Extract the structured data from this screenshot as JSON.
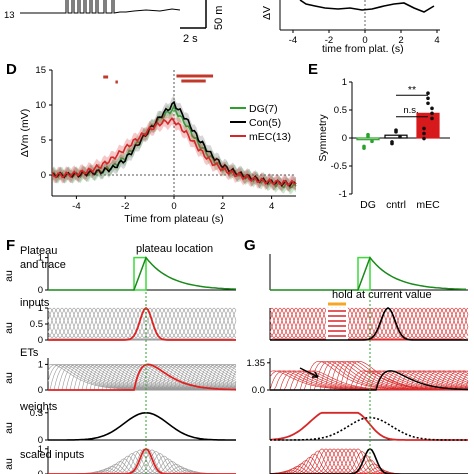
{
  "panels": {
    "D": "D",
    "E": "E",
    "F": "F",
    "G": "G"
  },
  "top_left": {
    "row_label": "13",
    "scale_y": "50 m",
    "scale_x": "2 s"
  },
  "top_right": {
    "ylabel": "ΔV",
    "xlabel": "time from plat. (s)",
    "xticks": [
      "-4",
      "-2",
      "0",
      "2",
      "4"
    ]
  },
  "F_panel": {
    "row_titles": [
      "Plateau\nand trace",
      "inputs",
      "ETs",
      "weights",
      "scaled inputs"
    ],
    "plateau_annotation": "plateau location",
    "ylabel": "au",
    "yticks_row1": [
      "0",
      "1"
    ],
    "yticks_row2": [
      "0",
      "0.5",
      "1"
    ],
    "yticks_row3": [
      "0",
      "1"
    ],
    "yticks_row4": [
      "0",
      "0.3"
    ],
    "yticks_row5": [
      "0",
      "1"
    ]
  },
  "G_panel": {
    "hold_annotation": "hold at current value",
    "yticks_row3": [
      "0.0",
      "1.35"
    ]
  },
  "colors": {
    "DG": "#2ca02c",
    "Con": "#000000",
    "mEC": "#d62728",
    "mEC_bar": "#d7191c",
    "hold": "#f5a623",
    "grey": "#8c8c8c"
  },
  "chart_data": [
    {
      "type": "line",
      "title": "",
      "xlabel": "Time from plateau (s)",
      "ylabel": "ΔVm (mV)",
      "xlim": [
        -5,
        5
      ],
      "ylim": [
        -3,
        15
      ],
      "xticks": [
        "-4",
        "-2",
        "0",
        "2",
        "4"
      ],
      "yticks": [
        "0",
        "5",
        "10",
        "15"
      ],
      "legend_position": "right",
      "series": [
        {
          "name": "DG(7)",
          "x": [
            -5,
            -4.5,
            -4,
            -3.5,
            -3,
            -2.5,
            -2,
            -1.5,
            -1,
            -0.5,
            0,
            0.5,
            1,
            1.5,
            2,
            2.5,
            3,
            3.5,
            4,
            4.5,
            5
          ],
          "values": [
            0,
            0,
            0,
            0.2,
            0.5,
            1.2,
            2.5,
            4.5,
            6.5,
            8.3,
            9.5,
            7.2,
            4.5,
            2.5,
            1,
            0.3,
            -0.3,
            -0.8,
            -1.2,
            -1.5,
            -1.6
          ]
        },
        {
          "name": "Con(5)",
          "x": [
            -5,
            -4.5,
            -4,
            -3.5,
            -3,
            -2.5,
            -2,
            -1.5,
            -1,
            -0.5,
            0,
            0.5,
            1,
            1.5,
            2,
            2.5,
            3,
            3.5,
            4,
            4.5,
            5
          ],
          "values": [
            0,
            0,
            0,
            0.3,
            0.5,
            1,
            2.2,
            4.3,
            6.5,
            8.6,
            10.2,
            8,
            5.2,
            3,
            1.3,
            0.4,
            -0.2,
            -0.7,
            -1,
            -1.2,
            -1.3
          ]
        },
        {
          "name": "mEC(13)",
          "x": [
            -5,
            -4.5,
            -4,
            -3.5,
            -3,
            -2.5,
            -2,
            -1.5,
            -1,
            -0.5,
            0,
            0.5,
            1,
            1.5,
            2,
            2.5,
            3,
            3.5,
            4,
            4.5,
            5
          ],
          "values": [
            0,
            0,
            0.2,
            0.6,
            1.3,
            2.4,
            3.8,
            5.2,
            6.5,
            7.5,
            7.8,
            6,
            3.8,
            1.9,
            0.8,
            0.1,
            -0.4,
            -0.8,
            -1,
            -1.1,
            -1.2
          ]
        }
      ]
    },
    {
      "type": "bar",
      "title": "",
      "xlabel": "",
      "ylabel": "Symmetry",
      "ylim": [
        -1,
        1
      ],
      "categories": [
        "DG",
        "cntrl",
        "mEC"
      ],
      "values": [
        -0.03,
        0.05,
        0.44
      ],
      "yticks": [
        "-1",
        "-0.5",
        "0",
        "0.5",
        "1"
      ],
      "annotations": [
        "n.s.",
        "**"
      ]
    }
  ]
}
